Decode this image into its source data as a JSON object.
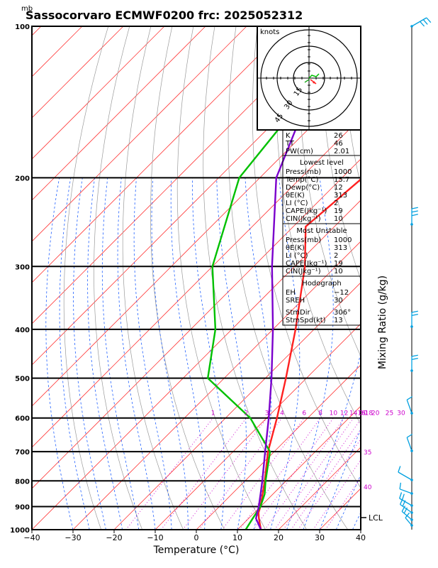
{
  "chart_data": {
    "type": "line",
    "title": "Sassocorvaro ECMWF0200 frc: 2025052312",
    "pressure_unit": "mb",
    "xlabel": "Temperature (°C)",
    "right_axis_label": "Mixing Ratio (g/kg)",
    "x_ticks": [
      "−40",
      "−30",
      "−20",
      "−10",
      "0",
      "10",
      "20",
      "30",
      "40"
    ],
    "x_tick_values": [
      -40,
      -30,
      -20,
      -10,
      0,
      10,
      20,
      30,
      40
    ],
    "pressure_ticks": [
      "100",
      "200",
      "300",
      "400",
      "500",
      "600",
      "700",
      "800",
      "900",
      "1000"
    ],
    "pressure_tick_values": [
      100,
      200,
      300,
      400,
      500,
      600,
      700,
      800,
      900,
      1000
    ],
    "xlim": [
      -40,
      40
    ],
    "plim": [
      1000,
      100
    ],
    "y_scale": "log",
    "skew_degrees": 45,
    "mixing_ratio_labels": [
      "1",
      "2",
      "3",
      "4",
      "6",
      "8",
      "10",
      "12",
      "14",
      "16",
      "18",
      "20",
      "25",
      "30"
    ],
    "mixing_ratio_values": [
      1,
      2,
      3,
      4,
      6,
      8,
      10,
      12,
      14,
      16,
      18,
      20,
      25,
      30
    ],
    "theta_e_labels": [
      "30",
      "35",
      "40"
    ],
    "lcl_label": "LCL",
    "lcl_pressure": 950,
    "series": [
      {
        "color": "#ff2020",
        "points": [
          [
            1000,
            15.7
          ],
          [
            950,
            12.5
          ],
          [
            925,
            11.0
          ],
          [
            900,
            10.0
          ],
          [
            850,
            7.5
          ],
          [
            800,
            4.8
          ],
          [
            700,
            -1.5
          ],
          [
            600,
            -7.5
          ],
          [
            500,
            -15.0
          ],
          [
            400,
            -24.5
          ],
          [
            300,
            -37.5
          ],
          [
            250,
            -47.0
          ],
          [
            200,
            -45.0
          ],
          [
            150,
            -43.0
          ],
          [
            100,
            -41.0
          ]
        ]
      },
      {
        "color": "#00c000",
        "points": [
          [
            1000,
            12.0
          ],
          [
            950,
            11.0
          ],
          [
            925,
            10.5
          ],
          [
            900,
            10.0
          ],
          [
            850,
            8.0
          ],
          [
            800,
            5.0
          ],
          [
            700,
            -1.0
          ],
          [
            600,
            -14.0
          ],
          [
            500,
            -34.0
          ],
          [
            400,
            -44.0
          ],
          [
            300,
            -60.0
          ],
          [
            200,
            -75.0
          ],
          [
            100,
            -82.0
          ]
        ]
      },
      {
        "color": "#7a00cc",
        "points": [
          [
            1000,
            15.7
          ],
          [
            950,
            11.8
          ],
          [
            900,
            9.6
          ],
          [
            850,
            7.0
          ],
          [
            800,
            4.2
          ],
          [
            700,
            -2.2
          ],
          [
            600,
            -9.5
          ],
          [
            500,
            -18.5
          ],
          [
            400,
            -30.0
          ],
          [
            300,
            -45.5
          ],
          [
            200,
            -66.0
          ],
          [
            100,
            -88.0
          ]
        ]
      }
    ],
    "hodograph": {
      "unit_label": "knots",
      "ring_labels": [
        "15",
        "30",
        "45"
      ]
    },
    "table": {
      "rows_top": [
        {
          "label": "K",
          "value": "26"
        },
        {
          "label": "TT",
          "value": "46"
        },
        {
          "label": "PW(cm)",
          "value": "2.01"
        }
      ],
      "lowest_level": {
        "header": "Lowest level",
        "rows": [
          {
            "label": "Press(mb)",
            "value": "1000"
          },
          {
            "label": "Temp(°C)",
            "value": "15.7"
          },
          {
            "label": "Dewp(°C)",
            "value": "12"
          },
          {
            "label": "θE(K)",
            "value": "313"
          },
          {
            "label": "LI (°C)",
            "value": "2"
          },
          {
            "label": "CAPE(Jkg⁻¹)",
            "value": "19"
          },
          {
            "label": "CIN(Jkg⁻¹)",
            "value": "10"
          }
        ]
      },
      "most_unstable": {
        "header": "Most Unstable",
        "rows": [
          {
            "label": "Press(mb)",
            "value": "1000"
          },
          {
            "label": "θE(K)",
            "value": "313"
          },
          {
            "label": "LI (°C)",
            "value": "2"
          },
          {
            "label": "CAPE(Jkg⁻¹)",
            "value": "19"
          },
          {
            "label": "CIN(Jkg⁻¹)",
            "value": "10"
          }
        ]
      },
      "hodograph_block": {
        "header": "Hodograph",
        "rows": [
          {
            "label": "EH",
            "value": "−12"
          },
          {
            "label": "SREH",
            "value": "30"
          },
          {
            "label": "StmDir",
            "value": "306°"
          },
          {
            "label": "StmSpd(kt)",
            "value": "13"
          }
        ]
      }
    },
    "colors": {
      "temperature": "#ff2020",
      "dewpoint": "#00c000",
      "parcel": "#7a00cc",
      "isotherm": "#ff3b3b",
      "dry_adiabat": "#9a9a9a",
      "moist_adiabat": "#2060ff",
      "mixing_ratio": "#cc00cc",
      "wind_barb": "#00a0e0"
    }
  }
}
